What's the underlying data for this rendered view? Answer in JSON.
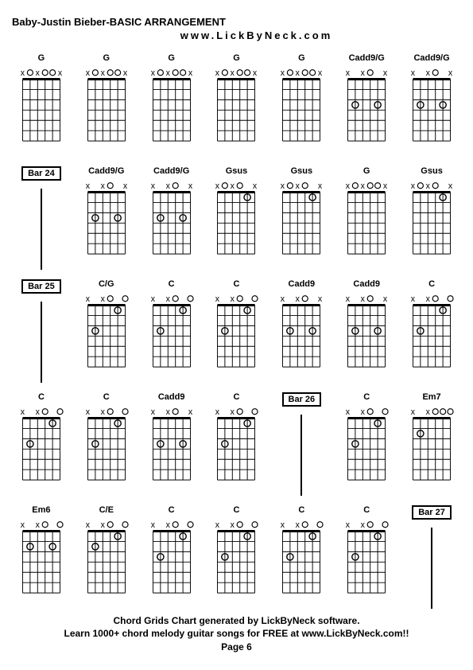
{
  "header": {
    "title": "Baby-Justin Bieber-BASIC ARRANGEMENT",
    "subtitle": "www.LickByNeck.com"
  },
  "footer": {
    "line1": "Chord Grids Chart generated by LickByNeck software.",
    "line2": "Learn 1000+ chord melody guitar songs for FREE at www.LickByNeck.com!!",
    "line3": "Page 6"
  },
  "style": {
    "bg": "#ffffff",
    "fg": "#000000",
    "title_fontsize": 13,
    "label_fontsize": 11,
    "footer_fontsize": 12,
    "grid_cols": 7,
    "grid_rows": 5,
    "chord_strings": 6,
    "chord_frets": 6,
    "diagram_w": 60,
    "diagram_h": 100
  },
  "cells": [
    {
      "type": "chord",
      "name": "G",
      "top": [
        "x",
        "o",
        "x",
        "o",
        "o",
        "x"
      ],
      "dots": []
    },
    {
      "type": "chord",
      "name": "G",
      "top": [
        "x",
        "o",
        "x",
        "o",
        "o",
        "x"
      ],
      "dots": []
    },
    {
      "type": "chord",
      "name": "G",
      "top": [
        "x",
        "o",
        "x",
        "o",
        "o",
        "x"
      ],
      "dots": []
    },
    {
      "type": "chord",
      "name": "G",
      "top": [
        "x",
        "o",
        "x",
        "o",
        "o",
        "x"
      ],
      "dots": []
    },
    {
      "type": "chord",
      "name": "G",
      "top": [
        "x",
        "o",
        "x",
        "o",
        "o",
        "x"
      ],
      "dots": []
    },
    {
      "type": "chord",
      "name": "Cadd9/G",
      "top": [
        "x",
        "",
        "x",
        "o",
        "",
        "x"
      ],
      "dots": [
        [
          3,
          2
        ],
        [
          3,
          5
        ]
      ]
    },
    {
      "type": "chord",
      "name": "Cadd9/G",
      "top": [
        "x",
        "",
        "x",
        "o",
        "",
        "x"
      ],
      "dots": [
        [
          3,
          2
        ],
        [
          3,
          5
        ]
      ]
    },
    {
      "type": "bar",
      "name": "Bar 24"
    },
    {
      "type": "chord",
      "name": "Cadd9/G",
      "top": [
        "x",
        "",
        "x",
        "o",
        "",
        "x"
      ],
      "dots": [
        [
          3,
          2
        ],
        [
          3,
          5
        ]
      ]
    },
    {
      "type": "chord",
      "name": "Cadd9/G",
      "top": [
        "x",
        "",
        "x",
        "o",
        "",
        "x"
      ],
      "dots": [
        [
          3,
          2
        ],
        [
          3,
          5
        ]
      ]
    },
    {
      "type": "chord",
      "name": "Gsus",
      "top": [
        "x",
        "o",
        "x",
        "o",
        "",
        "x"
      ],
      "dots": [
        [
          1,
          5
        ]
      ]
    },
    {
      "type": "chord",
      "name": "Gsus",
      "top": [
        "x",
        "o",
        "x",
        "o",
        "",
        "x"
      ],
      "dots": [
        [
          1,
          5
        ]
      ]
    },
    {
      "type": "chord",
      "name": "G",
      "top": [
        "x",
        "o",
        "x",
        "o",
        "o",
        "x"
      ],
      "dots": []
    },
    {
      "type": "chord",
      "name": "Gsus",
      "top": [
        "x",
        "o",
        "x",
        "o",
        "",
        "x"
      ],
      "dots": [
        [
          1,
          5
        ]
      ]
    },
    {
      "type": "bar",
      "name": "Bar 25"
    },
    {
      "type": "chord",
      "name": "C/G",
      "top": [
        "x",
        "",
        "x",
        "o",
        "",
        "o"
      ],
      "dots": [
        [
          1,
          5
        ],
        [
          3,
          2
        ]
      ]
    },
    {
      "type": "chord",
      "name": "C",
      "top": [
        "x",
        "",
        "x",
        "o",
        "",
        "o"
      ],
      "dots": [
        [
          1,
          5
        ],
        [
          3,
          2
        ]
      ]
    },
    {
      "type": "chord",
      "name": "C",
      "top": [
        "x",
        "",
        "x",
        "o",
        "",
        "o"
      ],
      "dots": [
        [
          1,
          5
        ],
        [
          3,
          2
        ]
      ]
    },
    {
      "type": "chord",
      "name": "Cadd9",
      "top": [
        "x",
        "",
        "x",
        "o",
        "",
        "x"
      ],
      "dots": [
        [
          3,
          2
        ],
        [
          3,
          5
        ]
      ]
    },
    {
      "type": "chord",
      "name": "Cadd9",
      "top": [
        "x",
        "",
        "x",
        "o",
        "",
        "x"
      ],
      "dots": [
        [
          3,
          2
        ],
        [
          3,
          5
        ]
      ]
    },
    {
      "type": "chord",
      "name": "C",
      "top": [
        "x",
        "",
        "x",
        "o",
        "",
        "o"
      ],
      "dots": [
        [
          1,
          5
        ],
        [
          3,
          2
        ]
      ]
    },
    {
      "type": "chord",
      "name": "C",
      "top": [
        "x",
        "",
        "x",
        "o",
        "",
        "o"
      ],
      "dots": [
        [
          1,
          5
        ],
        [
          3,
          2
        ]
      ]
    },
    {
      "type": "chord",
      "name": "C",
      "top": [
        "x",
        "",
        "x",
        "o",
        "",
        "o"
      ],
      "dots": [
        [
          1,
          5
        ],
        [
          3,
          2
        ]
      ]
    },
    {
      "type": "chord",
      "name": "Cadd9",
      "top": [
        "x",
        "",
        "x",
        "o",
        "",
        "x"
      ],
      "dots": [
        [
          3,
          2
        ],
        [
          3,
          5
        ]
      ]
    },
    {
      "type": "chord",
      "name": "C",
      "top": [
        "x",
        "",
        "x",
        "o",
        "",
        "o"
      ],
      "dots": [
        [
          1,
          5
        ],
        [
          3,
          2
        ]
      ]
    },
    {
      "type": "bar",
      "name": "Bar 26"
    },
    {
      "type": "chord",
      "name": "C",
      "top": [
        "x",
        "",
        "x",
        "o",
        "",
        "o"
      ],
      "dots": [
        [
          1,
          5
        ],
        [
          3,
          2
        ]
      ]
    },
    {
      "type": "chord",
      "name": "Em7",
      "top": [
        "x",
        "",
        "x",
        "o",
        "o",
        "o"
      ],
      "dots": [
        [
          2,
          2
        ]
      ]
    },
    {
      "type": "chord",
      "name": "Em6",
      "top": [
        "x",
        "",
        "x",
        "o",
        "",
        "o"
      ],
      "dots": [
        [
          2,
          2
        ],
        [
          2,
          5
        ]
      ]
    },
    {
      "type": "chord",
      "name": "C/E",
      "top": [
        "x",
        "",
        "x",
        "o",
        "",
        "o"
      ],
      "dots": [
        [
          1,
          5
        ],
        [
          2,
          2
        ]
      ]
    },
    {
      "type": "chord",
      "name": "C",
      "top": [
        "x",
        "",
        "x",
        "o",
        "",
        "o"
      ],
      "dots": [
        [
          1,
          5
        ],
        [
          3,
          2
        ]
      ]
    },
    {
      "type": "chord",
      "name": "C",
      "top": [
        "x",
        "",
        "x",
        "o",
        "",
        "o"
      ],
      "dots": [
        [
          1,
          5
        ],
        [
          3,
          2
        ]
      ]
    },
    {
      "type": "chord",
      "name": "C",
      "top": [
        "x",
        "",
        "x",
        "o",
        "",
        "o"
      ],
      "dots": [
        [
          1,
          5
        ],
        [
          3,
          2
        ]
      ]
    },
    {
      "type": "chord",
      "name": "C",
      "top": [
        "x",
        "",
        "x",
        "o",
        "",
        "o"
      ],
      "dots": [
        [
          1,
          5
        ],
        [
          3,
          2
        ]
      ]
    },
    {
      "type": "bar",
      "name": "Bar 27"
    }
  ]
}
